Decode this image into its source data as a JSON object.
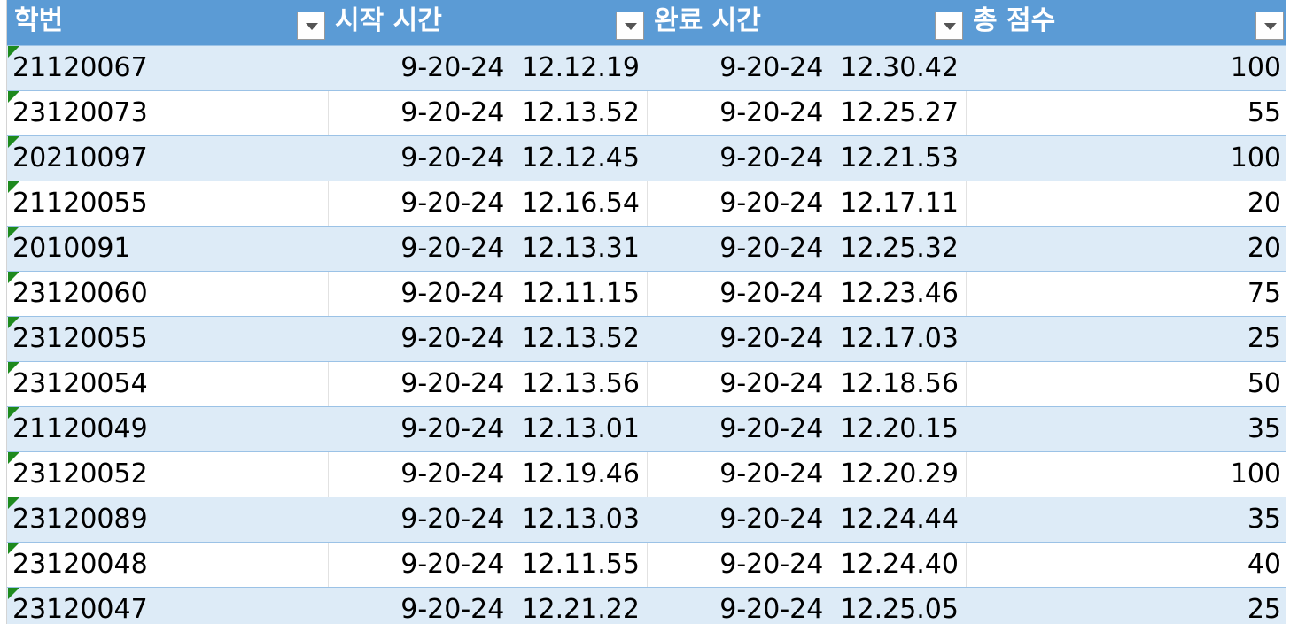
{
  "headers": {
    "student_id": "학번",
    "start_time": "시작 시간",
    "end_time": "완료 시간",
    "total_score": "총 점수"
  },
  "rows": [
    {
      "id": "21120067",
      "start": "9-20-24  12.12.19",
      "end": "9-20-24  12.30.42",
      "score": "100"
    },
    {
      "id": "23120073",
      "start": "9-20-24  12.13.52",
      "end": "9-20-24  12.25.27",
      "score": "55"
    },
    {
      "id": "20210097",
      "start": "9-20-24  12.12.45",
      "end": "9-20-24  12.21.53",
      "score": "100"
    },
    {
      "id": "21120055",
      "start": "9-20-24  12.16.54",
      "end": "9-20-24  12.17.11",
      "score": "20"
    },
    {
      "id": "2010091",
      "start": "9-20-24  12.13.31",
      "end": "9-20-24  12.25.32",
      "score": "20"
    },
    {
      "id": "23120060",
      "start": "9-20-24  12.11.15",
      "end": "9-20-24  12.23.46",
      "score": "75"
    },
    {
      "id": "23120055",
      "start": "9-20-24  12.13.52",
      "end": "9-20-24  12.17.03",
      "score": "25"
    },
    {
      "id": "23120054",
      "start": "9-20-24  12.13.56",
      "end": "9-20-24  12.18.56",
      "score": "50"
    },
    {
      "id": "21120049",
      "start": "9-20-24  12.13.01",
      "end": "9-20-24  12.20.15",
      "score": "35"
    },
    {
      "id": "23120052",
      "start": "9-20-24  12.19.46",
      "end": "9-20-24  12.20.29",
      "score": "100"
    },
    {
      "id": "23120089",
      "start": "9-20-24  12.13.03",
      "end": "9-20-24  12.24.44",
      "score": "35"
    },
    {
      "id": "23120048",
      "start": "9-20-24  12.11.55",
      "end": "9-20-24  12.24.40",
      "score": "40"
    },
    {
      "id": "23120047",
      "start": "9-20-24  12.21.22",
      "end": "9-20-24  12.25.05",
      "score": "25"
    }
  ],
  "colors": {
    "header_bg": "#5b9bd5",
    "band_row": "#ddebf7",
    "plain_row": "#ffffff",
    "error_indicator": "#1e8a1e"
  },
  "icons": {
    "filter": "filter-dropdown-icon",
    "number_as_text": "green-triangle-error-indicator"
  }
}
